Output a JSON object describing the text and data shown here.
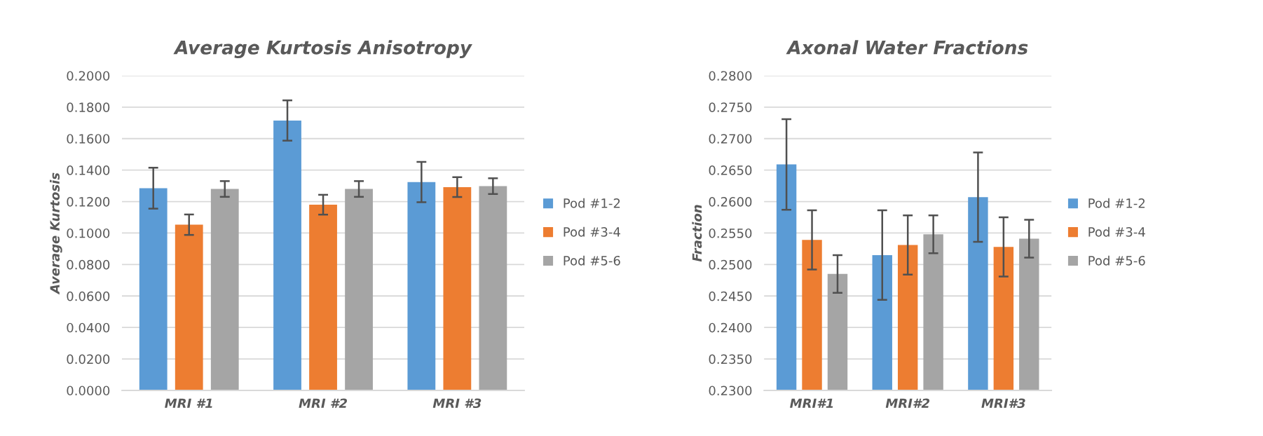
{
  "chart_data": [
    {
      "type": "bar",
      "title": "Average Kurtosis Anisotropy",
      "ylabel": "Average Kurtosis",
      "categories": [
        "MRI #1",
        "MRI #2",
        "MRI #3"
      ],
      "series": [
        {
          "name": "Pod #1-2",
          "color": "#5b9bd5",
          "values": [
            0.1285,
            0.1715,
            0.1324
          ],
          "errors": [
            0.013,
            0.0128,
            0.0128
          ]
        },
        {
          "name": "Pod #3-4",
          "color": "#ed7d31",
          "values": [
            0.1053,
            0.118,
            0.1292
          ],
          "errors": [
            0.0065,
            0.0063,
            0.0063
          ]
        },
        {
          "name": "Pod #5-6",
          "color": "#a5a5a5",
          "values": [
            0.128,
            0.128,
            0.1298
          ],
          "errors": [
            0.005,
            0.005,
            0.005
          ]
        }
      ],
      "ylim": [
        0,
        0.2
      ],
      "yticks": [
        {
          "value": 0,
          "label": "0.0000"
        },
        {
          "value": 0.02,
          "label": "0.0200"
        },
        {
          "value": 0.04,
          "label": "0.0400"
        },
        {
          "value": 0.06,
          "label": "0.0600"
        },
        {
          "value": 0.08,
          "label": "0.0800"
        },
        {
          "value": 0.1,
          "label": "0.1000"
        },
        {
          "value": 0.12,
          "label": "0.1200"
        },
        {
          "value": 0.14,
          "label": "0.1400"
        },
        {
          "value": 0.16,
          "label": "0.1600"
        },
        {
          "value": 0.18,
          "label": "0.1800"
        },
        {
          "value": 0.2,
          "label": "0.2000"
        }
      ],
      "grid": "y",
      "legend": "right"
    },
    {
      "type": "bar",
      "title": "Axonal Water Fractions",
      "ylabel": "Fraction",
      "categories": [
        "MRI#1",
        "MRI#2",
        "MRI#3"
      ],
      "series": [
        {
          "name": "Pod #1-2",
          "color": "#5b9bd5",
          "values": [
            0.2659,
            0.2515,
            0.2607
          ],
          "errors": [
            0.0072,
            0.0071,
            0.0071
          ]
        },
        {
          "name": "Pod #3-4",
          "color": "#ed7d31",
          "values": [
            0.2539,
            0.2531,
            0.2528
          ],
          "errors": [
            0.0047,
            0.0047,
            0.0047
          ]
        },
        {
          "name": "Pod #5-6",
          "color": "#a5a5a5",
          "values": [
            0.2485,
            0.2548,
            0.2541
          ],
          "errors": [
            0.003,
            0.003,
            0.003
          ]
        }
      ],
      "ylim": [
        0.23,
        0.28
      ],
      "yticks": [
        {
          "value": 0.23,
          "label": "0.2300"
        },
        {
          "value": 0.235,
          "label": "0.2350"
        },
        {
          "value": 0.24,
          "label": "0.2400"
        },
        {
          "value": 0.245,
          "label": "0.2450"
        },
        {
          "value": 0.25,
          "label": "0.2500"
        },
        {
          "value": 0.255,
          "label": "0.2550"
        },
        {
          "value": 0.26,
          "label": "0.2600"
        },
        {
          "value": 0.265,
          "label": "0.2650"
        },
        {
          "value": 0.27,
          "label": "0.2700"
        },
        {
          "value": 0.275,
          "label": "0.2750"
        },
        {
          "value": 0.28,
          "label": "0.2800"
        }
      ],
      "grid": "y",
      "legend": "right"
    }
  ]
}
